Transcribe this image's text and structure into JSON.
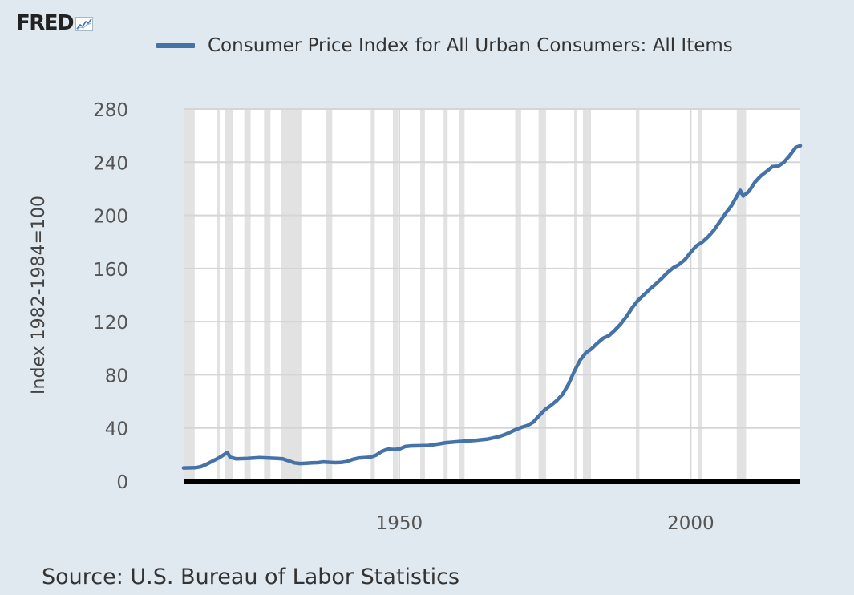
{
  "logo": {
    "text": "FRED",
    "icon": "line-chart-icon"
  },
  "source": "Source: U.S. Bureau of Labor Statistics",
  "colors": {
    "background": "#e1e9f0",
    "plot": "#ffffff",
    "line": "#4572a7",
    "recession": "#e2e2e2",
    "grid": "#d5d5d5"
  },
  "chart_data": {
    "type": "line",
    "title": "",
    "xlabel": "",
    "ylabel": "Index 1982-1984=100",
    "xlim": [
      1913,
      2018.8
    ],
    "ylim": [
      0,
      280
    ],
    "yticks": [
      0,
      40,
      80,
      120,
      160,
      200,
      240,
      280
    ],
    "xticks": [
      1950,
      2000
    ],
    "grid": true,
    "legend_position": "top",
    "series": [
      {
        "name": "Consumer Price Index for All Urban Consumers: All Items",
        "x": [
          1913,
          1915,
          1916,
          1917,
          1918,
          1919,
          1920.5,
          1921,
          1922,
          1924,
          1926,
          1929,
          1930,
          1931,
          1932,
          1933,
          1934,
          1935,
          1936,
          1937,
          1938,
          1939,
          1940,
          1941,
          1942,
          1943,
          1944,
          1945,
          1946,
          1947,
          1948,
          1949,
          1950,
          1951,
          1952,
          1955,
          1957,
          1958,
          1960,
          1963,
          1965,
          1966,
          1967,
          1968,
          1969,
          1970,
          1971,
          1972,
          1973,
          1974,
          1975,
          1976,
          1977,
          1978,
          1979,
          1980,
          1981,
          1982,
          1983,
          1984,
          1985,
          1986,
          1987,
          1988,
          1989,
          1990,
          1991,
          1992,
          1993,
          1994,
          1995,
          1996,
          1997,
          1998,
          1999,
          2000,
          2001,
          2002,
          2003,
          2004,
          2005,
          2006,
          2007,
          2008.5,
          2009,
          2010,
          2011,
          2012,
          2013,
          2014,
          2015,
          2016,
          2017,
          2018,
          2018.8
        ],
        "values": [
          9.9,
          10.1,
          10.9,
          12.8,
          15.1,
          17.3,
          21.5,
          17.9,
          16.8,
          17.1,
          17.7,
          17.1,
          16.7,
          15.2,
          13.7,
          13.2,
          13.4,
          13.7,
          13.9,
          14.4,
          14.1,
          13.9,
          14.0,
          14.7,
          16.3,
          17.3,
          17.6,
          18.0,
          19.5,
          22.3,
          24.1,
          23.8,
          24.1,
          26.0,
          26.5,
          26.8,
          28.1,
          28.9,
          29.6,
          30.6,
          31.5,
          32.4,
          33.4,
          34.8,
          36.7,
          38.8,
          40.5,
          41.8,
          44.4,
          49.3,
          53.8,
          56.9,
          60.6,
          65.2,
          72.6,
          82.4,
          90.9,
          96.5,
          99.6,
          103.9,
          107.6,
          109.6,
          113.6,
          118.3,
          124.0,
          130.7,
          136.2,
          140.3,
          144.5,
          148.2,
          152.4,
          156.9,
          160.5,
          163.0,
          166.6,
          172.2,
          177.1,
          179.9,
          184.0,
          188.9,
          195.3,
          201.6,
          207.3,
          218.8,
          214.5,
          218.1,
          224.9,
          229.6,
          233.0,
          236.7,
          237.0,
          240.0,
          245.1,
          251.1,
          252.4
        ]
      }
    ],
    "recessions": [
      [
        1913.0,
        1914.9
      ],
      [
        1918.7,
        1919.2
      ],
      [
        1920.1,
        1921.5
      ],
      [
        1923.4,
        1924.5
      ],
      [
        1926.8,
        1927.9
      ],
      [
        1929.7,
        1933.2
      ],
      [
        1937.4,
        1938.5
      ],
      [
        1945.1,
        1945.8
      ],
      [
        1948.9,
        1949.8
      ],
      [
        1953.6,
        1954.4
      ],
      [
        1957.6,
        1958.3
      ],
      [
        1960.3,
        1961.2
      ],
      [
        1969.9,
        1970.9
      ],
      [
        1973.9,
        1975.2
      ],
      [
        1980.0,
        1980.5
      ],
      [
        1981.5,
        1982.9
      ],
      [
        1990.6,
        1991.2
      ],
      [
        2001.2,
        2001.9
      ],
      [
        2007.9,
        2009.5
      ]
    ]
  }
}
